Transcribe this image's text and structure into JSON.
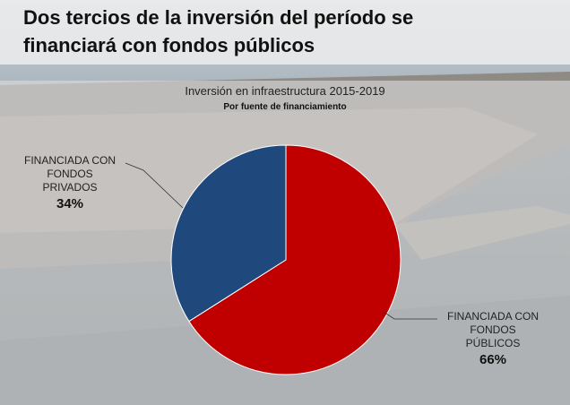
{
  "headline": {
    "line1": "Dos tercios de la inversión del período se",
    "line2": "financiará con fondos públicos"
  },
  "chart_data": {
    "type": "pie",
    "title": "Inversión en infraestructura 2015-2019",
    "subtitle": "Por fuente de financiamiento",
    "slices": [
      {
        "label_lines": [
          "FINANCIADA CON",
          "FONDOS",
          "PÚBLICOS"
        ],
        "value": 66,
        "value_label": "66%",
        "color": "#c00000"
      },
      {
        "label_lines": [
          "FINANCIADA CON",
          "FONDOS",
          "PRIVADOS"
        ],
        "value": 34,
        "value_label": "34%",
        "color": "#1f497d"
      }
    ]
  }
}
